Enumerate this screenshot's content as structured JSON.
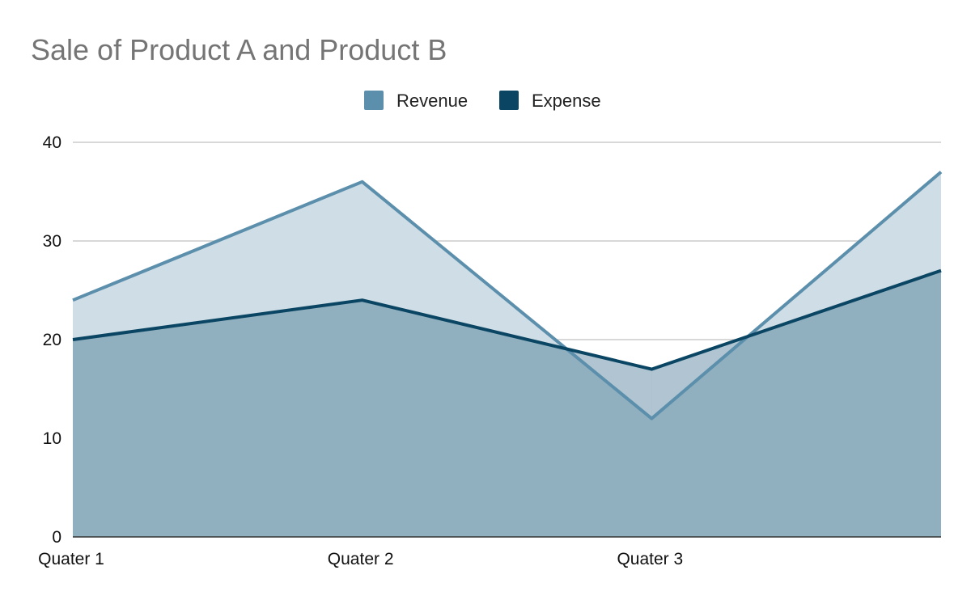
{
  "chart_data": {
    "type": "area",
    "title": "Sale of Product A and Product B",
    "categories": [
      "Quater 1",
      "Quater 2",
      "Quater 3",
      ""
    ],
    "series": [
      {
        "name": "Revenue",
        "values": [
          24,
          36,
          12,
          37
        ],
        "color": "#5b8fac",
        "fill_color": "#cfdde6"
      },
      {
        "name": "Expense",
        "values": [
          20,
          24,
          17,
          27
        ],
        "color": "#0a4663",
        "fill_color": "#90afbf"
      }
    ],
    "overlap_fill_color": "#b0c5d1",
    "ylim": [
      0,
      40
    ],
    "yticks": [
      0,
      10,
      20,
      30,
      40
    ],
    "xlabel": "",
    "ylabel": "",
    "grid": true,
    "legend_position": "top-center"
  }
}
